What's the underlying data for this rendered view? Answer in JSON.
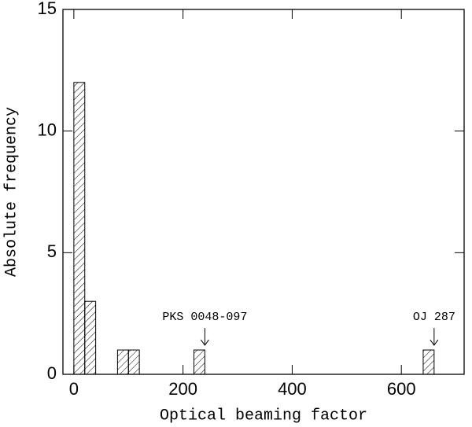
{
  "chart_data": {
    "type": "histogram",
    "xlabel": "Optical beaming factor",
    "ylabel": "Absolute frequency",
    "bins": [
      0,
      20,
      40,
      60,
      80,
      100,
      120,
      140,
      160,
      180,
      200,
      220,
      240,
      260,
      280,
      300,
      320,
      340,
      360,
      380,
      400,
      420,
      440,
      460,
      480,
      500,
      520,
      540,
      560,
      580,
      600,
      620,
      640,
      660
    ],
    "counts": [
      12,
      3,
      0,
      0,
      1,
      1,
      0,
      0,
      0,
      0,
      0,
      1,
      0,
      0,
      0,
      0,
      0,
      0,
      0,
      0,
      0,
      0,
      0,
      0,
      0,
      0,
      0,
      0,
      0,
      0,
      0,
      0,
      1
    ],
    "color": "#000000",
    "xlim": [
      -20,
      715
    ],
    "ylim": [
      0,
      15
    ],
    "xticks": [
      0,
      200,
      400,
      600
    ],
    "yticks": [
      0,
      5,
      10,
      15
    ],
    "annotations": [
      {
        "text": "PKS 0048-097",
        "x": 230
      },
      {
        "text": "OJ 287",
        "x": 650
      }
    ]
  }
}
